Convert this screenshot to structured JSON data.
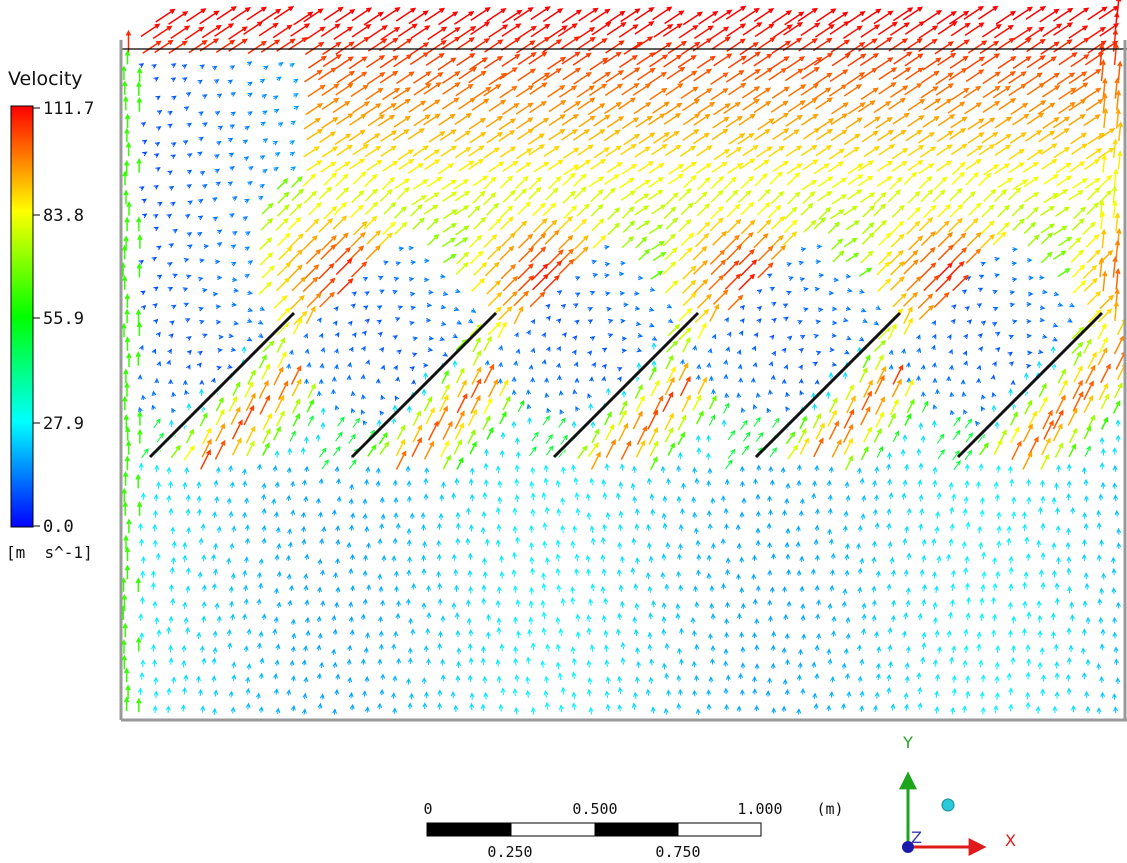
{
  "legend": {
    "title": "Velocity",
    "ticks": [
      "111.7",
      "83.8",
      "55.9",
      "27.9",
      "0.0"
    ],
    "min": 0.0,
    "max": 111.7,
    "unit": "[m  s^-1]",
    "colormap": [
      "#0000ff",
      "#00ffff",
      "#00ff00",
      "#ffff00",
      "#ff0000"
    ]
  },
  "scale_bar": {
    "top_labels": [
      "0",
      "0.500",
      "1.000"
    ],
    "bottom_labels": [
      "0.250",
      "0.750"
    ],
    "unit": "(m)",
    "segments": 4
  },
  "axes": {
    "y_label": "Y",
    "x_label": "X",
    "z_label": "Z",
    "y_color": "#1ea51e",
    "x_color": "#e01a1a",
    "z_color": "#1a1aaa",
    "marker_color": "#29c9d9"
  },
  "colors": {
    "boundary": "#888888",
    "boundary_top": "#000000",
    "blade": "#000000",
    "background": "#ffffff"
  },
  "field": {
    "blade_count": 5
  }
}
